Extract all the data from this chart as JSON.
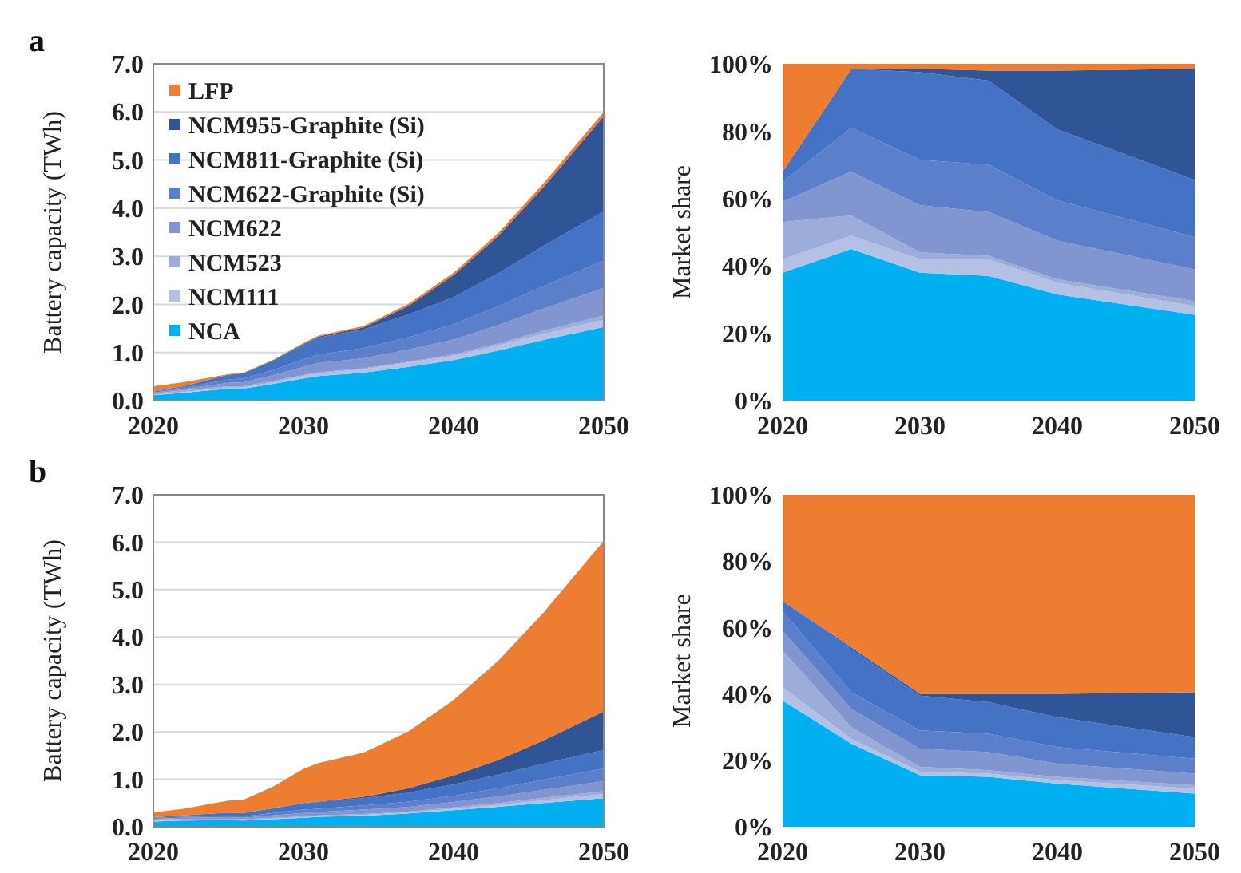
{
  "chart_data": [
    {
      "type": "area",
      "title": "a",
      "ylabel": "Battery capacity (TWh)",
      "stacked": true,
      "grid": "y",
      "legend": "top left",
      "x": [
        2020,
        2022,
        2025,
        2026,
        2028,
        2030,
        2031,
        2034,
        2037,
        2040,
        2043,
        2046,
        2050
      ],
      "xlim": [
        2020,
        2050
      ],
      "xticks": [
        2020,
        2030,
        2040,
        2050
      ],
      "ylim": [
        0,
        7
      ],
      "yticks": [
        {
          "value": 0,
          "label": "0.0"
        },
        {
          "value": 1,
          "label": "1.0"
        },
        {
          "value": 2,
          "label": "2.0"
        },
        {
          "value": 3,
          "label": "3.0"
        },
        {
          "value": 4,
          "label": "4.0"
        },
        {
          "value": 5,
          "label": "5.0"
        },
        {
          "value": 6,
          "label": "6.0"
        },
        {
          "value": 7,
          "label": "7.0"
        }
      ],
      "series": [
        {
          "name": "NCA",
          "color": "#00b0f0",
          "values": [
            0.11,
            0.16,
            0.25,
            0.25,
            0.35,
            0.46,
            0.51,
            0.58,
            0.7,
            0.84,
            1.04,
            1.26,
            1.53
          ]
        },
        {
          "name": "NCM111",
          "color": "#b4c0e4",
          "values": [
            0.01,
            0.02,
            0.02,
            0.02,
            0.03,
            0.05,
            0.06,
            0.07,
            0.09,
            0.09,
            0.11,
            0.13,
            0.15
          ]
        },
        {
          "name": "NCM523",
          "color": "#9dadd9",
          "values": [
            0.03,
            0.03,
            0.03,
            0.03,
            0.03,
            0.02,
            0.02,
            0.02,
            0.02,
            0.03,
            0.04,
            0.06,
            0.09
          ]
        },
        {
          "name": "NCM622",
          "color": "#8196d0",
          "values": [
            0.02,
            0.03,
            0.07,
            0.08,
            0.12,
            0.17,
            0.19,
            0.21,
            0.25,
            0.31,
            0.38,
            0.46,
            0.57
          ]
        },
        {
          "name": "NCM622-Graphite (Si)",
          "color": "#5b7fcb",
          "values": [
            0.02,
            0.03,
            0.07,
            0.08,
            0.11,
            0.16,
            0.18,
            0.21,
            0.26,
            0.32,
            0.39,
            0.47,
            0.57
          ]
        },
        {
          "name": "NCM811-Graphite (Si)",
          "color": "#4472c4",
          "values": [
            0.01,
            0.03,
            0.1,
            0.11,
            0.19,
            0.31,
            0.35,
            0.39,
            0.47,
            0.56,
            0.69,
            0.84,
            1.02
          ]
        },
        {
          "name": "NCM955-Graphite (Si)",
          "color": "#2f5597",
          "values": [
            0,
            0,
            0,
            0,
            0.01,
            0.01,
            0.02,
            0.04,
            0.18,
            0.46,
            0.78,
            1.22,
            1.98
          ]
        },
        {
          "name": "LFP",
          "color": "#ed7d31",
          "values": [
            0.1,
            0.08,
            0.01,
            0.01,
            0.01,
            0.02,
            0.02,
            0.03,
            0.04,
            0.05,
            0.06,
            0.08,
            0.09
          ]
        }
      ]
    },
    {
      "type": "area",
      "ylabel": "Market share",
      "stacked": true,
      "x": [
        2020,
        2025,
        2030,
        2035,
        2040,
        2050
      ],
      "xlim": [
        2020,
        2050
      ],
      "xticks": [
        2020,
        2030,
        2040,
        2050
      ],
      "ylim": [
        0,
        100
      ],
      "yticks": [
        {
          "value": 0,
          "label": "0%"
        },
        {
          "value": 20,
          "label": "20%"
        },
        {
          "value": 40,
          "label": "40%"
        },
        {
          "value": 60,
          "label": "60%"
        },
        {
          "value": 80,
          "label": "80%"
        },
        {
          "value": 100,
          "label": "100%"
        }
      ],
      "series": [
        {
          "color": "#00b0f0",
          "values": [
            38,
            45,
            38,
            37,
            31.5,
            25.5
          ]
        },
        {
          "color": "#b4c0e4",
          "values": [
            4,
            4,
            4,
            5,
            3.5,
            2.5
          ]
        },
        {
          "color": "#9dadd9",
          "values": [
            11,
            6,
            2,
            1,
            1,
            1.5
          ]
        },
        {
          "color": "#8196d0",
          "values": [
            6,
            13,
            14,
            13,
            11.5,
            9.5
          ]
        },
        {
          "color": "#5b7fcb",
          "values": [
            6,
            13,
            13.5,
            14,
            12,
            9.5
          ]
        },
        {
          "color": "#4472c4",
          "values": [
            3,
            17.5,
            26,
            25,
            21,
            17
          ]
        },
        {
          "color": "#2f5597",
          "values": [
            0,
            0,
            1,
            3,
            17.5,
            33
          ]
        },
        {
          "color": "#ed7d31",
          "values": [
            32,
            1.5,
            1.5,
            2,
            2,
            1.5
          ]
        }
      ]
    },
    {
      "type": "area",
      "title": "b",
      "ylabel": "Battery capacity (TWh)",
      "stacked": true,
      "grid": "y",
      "x": [
        2020,
        2022,
        2025,
        2026,
        2028,
        2030,
        2031,
        2034,
        2037,
        2040,
        2043,
        2046,
        2050
      ],
      "xlim": [
        2020,
        2050
      ],
      "xticks": [
        2020,
        2030,
        2040,
        2050
      ],
      "ylim": [
        0,
        7
      ],
      "yticks": [
        {
          "value": 0,
          "label": "0.0"
        },
        {
          "value": 1,
          "label": "1.0"
        },
        {
          "value": 2,
          "label": "2.0"
        },
        {
          "value": 3,
          "label": "3.0"
        },
        {
          "value": 4,
          "label": "4.0"
        },
        {
          "value": 5,
          "label": "5.0"
        },
        {
          "value": 6,
          "label": "6.0"
        },
        {
          "value": 7,
          "label": "7.0"
        }
      ],
      "series": [
        {
          "color": "#00b0f0",
          "values": [
            0.11,
            0.13,
            0.14,
            0.13,
            0.16,
            0.19,
            0.21,
            0.23,
            0.28,
            0.35,
            0.42,
            0.5,
            0.6
          ]
        },
        {
          "color": "#b4c0e4",
          "values": [
            0.01,
            0.01,
            0.01,
            0.01,
            0.01,
            0.01,
            0.01,
            0.02,
            0.02,
            0.03,
            0.04,
            0.06,
            0.09
          ]
        },
        {
          "color": "#9dadd9",
          "values": [
            0.03,
            0.03,
            0.02,
            0.02,
            0.02,
            0.02,
            0.02,
            0.02,
            0.02,
            0.03,
            0.04,
            0.05,
            0.06
          ]
        },
        {
          "color": "#8196d0",
          "values": [
            0.02,
            0.02,
            0.03,
            0.03,
            0.05,
            0.07,
            0.07,
            0.09,
            0.1,
            0.11,
            0.14,
            0.17,
            0.21
          ]
        },
        {
          "color": "#5b7fcb",
          "values": [
            0.02,
            0.02,
            0.03,
            0.03,
            0.05,
            0.07,
            0.07,
            0.09,
            0.11,
            0.13,
            0.17,
            0.21,
            0.27
          ]
        },
        {
          "color": "#4472c4",
          "values": [
            0.01,
            0.03,
            0.07,
            0.07,
            0.1,
            0.13,
            0.14,
            0.15,
            0.19,
            0.24,
            0.29,
            0.34,
            0.39
          ]
        },
        {
          "color": "#2f5597",
          "values": [
            0,
            0,
            0,
            0,
            0,
            0.01,
            0.01,
            0.03,
            0.09,
            0.19,
            0.31,
            0.49,
            0.81
          ]
        },
        {
          "color": "#ed7d31",
          "values": [
            0.1,
            0.14,
            0.25,
            0.28,
            0.46,
            0.72,
            0.81,
            0.93,
            1.2,
            1.59,
            2.1,
            2.7,
            3.6
          ]
        }
      ]
    },
    {
      "type": "area",
      "ylabel": "Market share",
      "stacked": true,
      "x": [
        2020,
        2025,
        2030,
        2035,
        2040,
        2050
      ],
      "xlim": [
        2020,
        2050
      ],
      "xticks": [
        2020,
        2030,
        2040,
        2050
      ],
      "ylim": [
        0,
        100
      ],
      "yticks": [
        {
          "value": 0,
          "label": "0%"
        },
        {
          "value": 20,
          "label": "20%"
        },
        {
          "value": 40,
          "label": "40%"
        },
        {
          "value": 60,
          "label": "60%"
        },
        {
          "value": 80,
          "label": "80%"
        },
        {
          "value": 100,
          "label": "100%"
        }
      ],
      "series": [
        {
          "color": "#00b0f0",
          "values": [
            38,
            25,
            15.5,
            15,
            13,
            10
          ]
        },
        {
          "color": "#b4c0e4",
          "values": [
            4,
            1.5,
            1,
            1,
            1,
            1.5
          ]
        },
        {
          "color": "#9dadd9",
          "values": [
            11,
            3.5,
            1.5,
            1,
            1,
            1
          ]
        },
        {
          "color": "#8196d0",
          "values": [
            6,
            5.5,
            5.5,
            5.5,
            4,
            3.5
          ]
        },
        {
          "color": "#5b7fcb",
          "values": [
            6,
            5,
            5.5,
            5.5,
            5,
            4.5
          ]
        },
        {
          "color": "#4472c4",
          "values": [
            3,
            13,
            10.5,
            9.5,
            9,
            6.5
          ]
        },
        {
          "color": "#2f5597",
          "values": [
            0,
            0.5,
            0.5,
            2.5,
            7,
            13.5
          ]
        },
        {
          "color": "#ed7d31",
          "values": [
            32,
            46,
            60,
            60,
            60,
            59.5
          ]
        }
      ]
    }
  ]
}
